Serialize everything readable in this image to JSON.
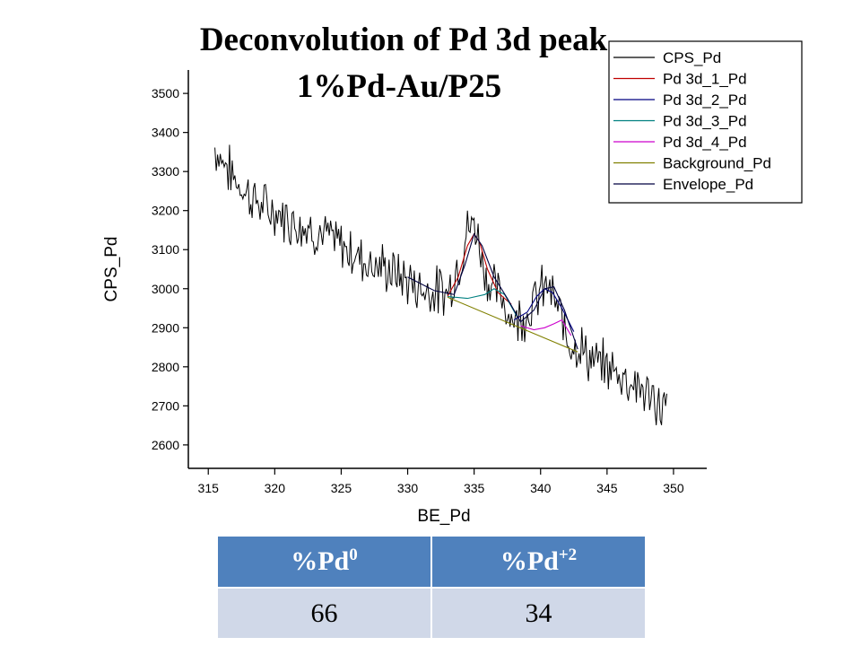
{
  "chart_data": {
    "type": "line",
    "title": "Deconvolution of Pd 3d peak",
    "subtitle": "1%Pd-Au/P25",
    "xlabel": "BE_Pd",
    "ylabel": "CPS_Pd",
    "xlim": [
      313.5,
      352.5
    ],
    "ylim": [
      2540,
      3560
    ],
    "x_ticks": [
      315,
      320,
      325,
      330,
      335,
      340,
      345,
      350
    ],
    "y_ticks": [
      2600,
      2700,
      2800,
      2900,
      3000,
      3100,
      3200,
      3300,
      3400,
      3500
    ],
    "legend_position": "top-right",
    "series": [
      {
        "name": "CPS_Pd",
        "color": "#000000",
        "style": "noisy-line",
        "x": [
          315.5,
          317,
          319,
          321,
          323,
          325,
          327,
          329,
          331,
          333,
          334,
          334.5,
          335,
          335.5,
          336,
          337,
          338,
          339,
          340,
          340.5,
          341,
          342,
          343,
          344,
          345,
          346,
          347,
          348,
          349,
          349.6
        ],
        "y": [
          3360,
          3280,
          3210,
          3180,
          3150,
          3110,
          3070,
          3040,
          3000,
          2990,
          3080,
          3150,
          3170,
          3100,
          3020,
          2980,
          2920,
          2940,
          2990,
          3010,
          2970,
          2880,
          2850,
          2810,
          2800,
          2780,
          2760,
          2730,
          2700,
          2690
        ]
      },
      {
        "name": "Pd 3d_1_Pd",
        "color": "#c00000",
        "x": [
          333.0,
          333.8,
          334.5,
          335.0,
          335.4,
          336.0,
          336.8,
          337.8
        ],
        "y": [
          2980,
          3030,
          3110,
          3140,
          3120,
          3050,
          2990,
          2960
        ]
      },
      {
        "name": "Pd 3d_2_Pd",
        "color": "#000080",
        "x": [
          338.0,
          339.0,
          339.7,
          340.3,
          340.9,
          341.6,
          342.5
        ],
        "y": [
          2920,
          2940,
          2980,
          3000,
          2990,
          2950,
          2890
        ]
      },
      {
        "name": "Pd 3d_3_Pd",
        "color": "#008080",
        "x": [
          333.0,
          334.5,
          335.8,
          336.5,
          337.3,
          338.2
        ],
        "y": [
          2980,
          2975,
          2985,
          3000,
          2985,
          2930
        ]
      },
      {
        "name": "Pd 3d_4_Pd",
        "color": "#cc00cc",
        "x": [
          338.5,
          339.5,
          340.3,
          341.0,
          341.6,
          342.3
        ],
        "y": [
          2905,
          2895,
          2900,
          2910,
          2920,
          2880
        ]
      },
      {
        "name": "Background_Pd",
        "color": "#808000",
        "x": [
          333.0,
          342.8
        ],
        "y": [
          2978,
          2838
        ]
      },
      {
        "name": "Envelope_Pd",
        "color": "#000040",
        "x": [
          330.0,
          332.0,
          333.5,
          334.3,
          335.0,
          335.6,
          336.5,
          337.5,
          338.5,
          339.5,
          340.3,
          341.0,
          341.8,
          342.8
        ],
        "y": [
          3030,
          2995,
          2985,
          3060,
          3140,
          3110,
          3030,
          2975,
          2915,
          2945,
          3000,
          3005,
          2945,
          2845
        ]
      }
    ]
  },
  "table": {
    "headers": [
      "%Pd",
      "%Pd"
    ],
    "header_sups": [
      "0",
      "+2"
    ],
    "values": [
      "66",
      "34"
    ]
  }
}
